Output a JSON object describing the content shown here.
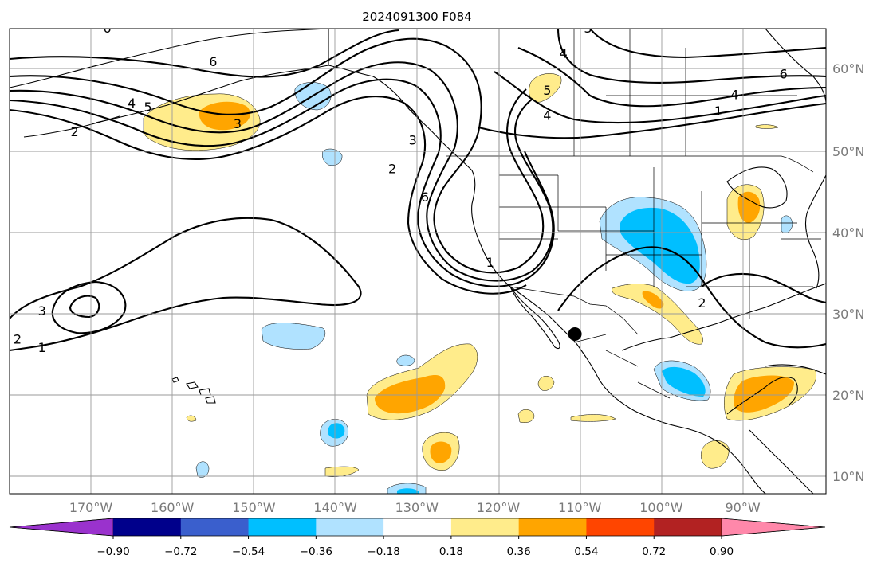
{
  "title": "2024091300 F084",
  "map": {
    "lat_labels": [
      "10°N",
      "20°N",
      "30°N",
      "40°N",
      "50°N",
      "60°N"
    ],
    "lat_values": [
      10,
      20,
      30,
      40,
      50,
      60
    ],
    "lon_labels": [
      "170°W",
      "160°W",
      "150°W",
      "140°W",
      "130°W",
      "120°W",
      "110°W",
      "100°W",
      "90°W"
    ],
    "lon_values": [
      -170,
      -160,
      -150,
      -140,
      -130,
      -120,
      -110,
      -100,
      -90
    ],
    "extent": {
      "lon_min": -180,
      "lon_max": -80,
      "lat_min": 8,
      "lat_max": 65
    },
    "grid": true,
    "marker": {
      "lon": -110.6,
      "lat": 27.5
    },
    "contour_labels": [
      {
        "text": "6",
        "lon": -168,
        "lat": 64.5
      },
      {
        "text": "6",
        "lon": -155,
        "lat": 60.5
      },
      {
        "text": "4",
        "lon": -165,
        "lat": 55.5
      },
      {
        "text": "5",
        "lon": -163,
        "lat": 55
      },
      {
        "text": "2",
        "lon": -172,
        "lat": 52
      },
      {
        "text": "3",
        "lon": -152,
        "lat": 53
      },
      {
        "text": "3",
        "lon": -109,
        "lat": 64.5
      },
      {
        "text": "4",
        "lon": -112,
        "lat": 61.5
      },
      {
        "text": "5",
        "lon": -114,
        "lat": 57
      },
      {
        "text": "6",
        "lon": -85,
        "lat": 59
      },
      {
        "text": "4",
        "lon": -91,
        "lat": 56.5
      },
      {
        "text": "4",
        "lon": -114,
        "lat": 54
      },
      {
        "text": "1",
        "lon": -93,
        "lat": 54.5
      },
      {
        "text": "3",
        "lon": -130.5,
        "lat": 51
      },
      {
        "text": "2",
        "lon": -133,
        "lat": 47.5
      },
      {
        "text": "6",
        "lon": -129,
        "lat": 44
      },
      {
        "text": "1",
        "lon": -121,
        "lat": 36
      },
      {
        "text": "3",
        "lon": -176,
        "lat": 30
      },
      {
        "text": "2",
        "lon": -179,
        "lat": 26.5
      },
      {
        "text": "1",
        "lon": -176,
        "lat": 25.5
      },
      {
        "text": "2",
        "lon": -95,
        "lat": 31
      }
    ]
  },
  "colorbar": {
    "labels": [
      "−0.90",
      "−0.72",
      "−0.54",
      "−0.36",
      "−0.18",
      "0.18",
      "0.36",
      "0.54",
      "0.72",
      "0.90"
    ],
    "levels": [
      -0.9,
      -0.72,
      -0.54,
      -0.36,
      -0.18,
      0.18,
      0.36,
      0.54,
      0.72,
      0.9
    ],
    "colors": [
      "#9a32cd",
      "#00008b",
      "#3a5fcd",
      "#00bfff",
      "#b0e2ff",
      "#ffffff",
      "#ffec8b",
      "#ffa500",
      "#ff4500",
      "#b22222",
      "#ff88aa"
    ],
    "extend": "both"
  }
}
